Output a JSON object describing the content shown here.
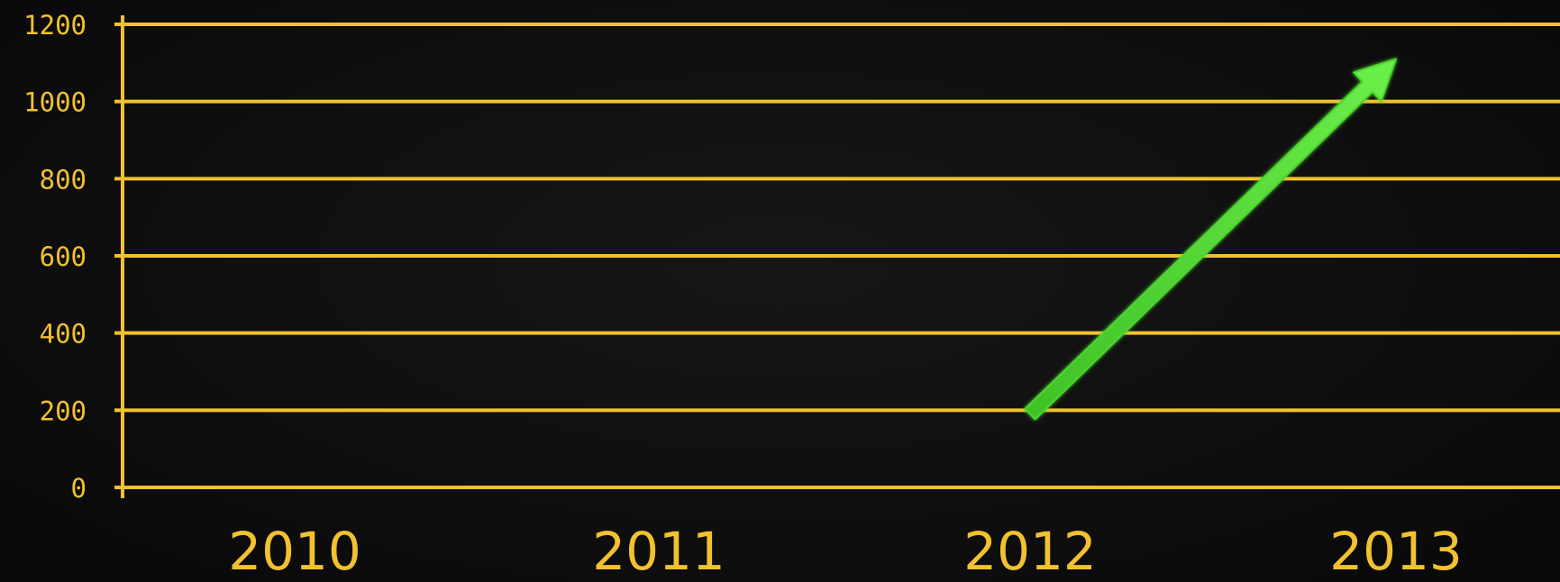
{
  "chart_data": {
    "type": "line",
    "categories": [
      "2010",
      "2011",
      "2012",
      "2013"
    ],
    "series": [
      {
        "points": [
          {
            "x": "2012",
            "y": 190
          },
          {
            "x": "2013",
            "y": 1110
          }
        ],
        "color": "#4cd62f",
        "style": "arrow"
      }
    ],
    "ylim": [
      0,
      1200
    ],
    "yticks": [
      "0",
      "200",
      "400",
      "600",
      "800",
      "1000",
      "1200"
    ],
    "grid": true,
    "colors": {
      "axis": "#f2c12e",
      "background": "#0b0b0b"
    }
  }
}
